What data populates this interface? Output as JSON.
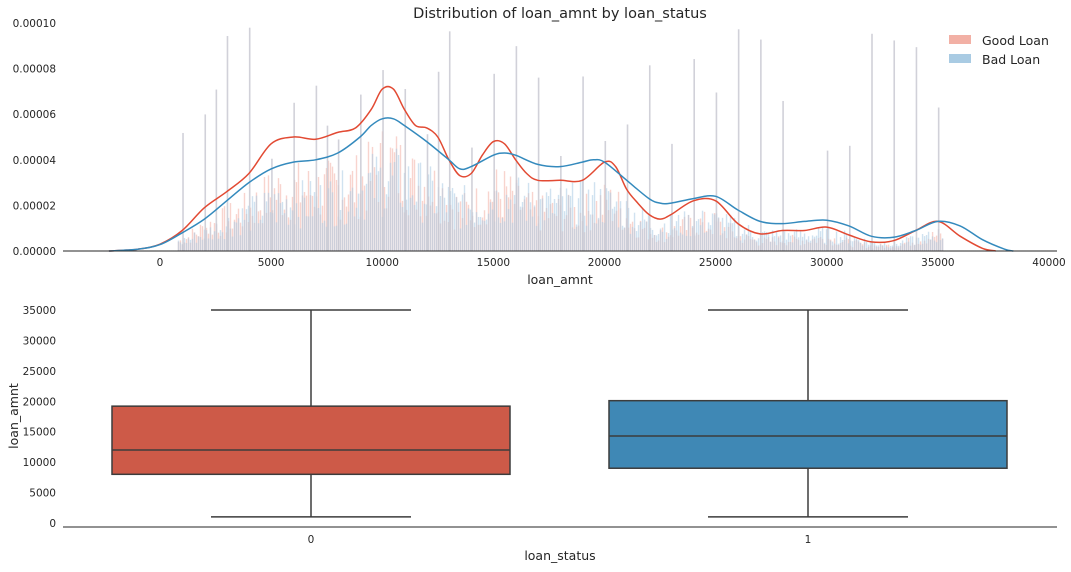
{
  "chart_data": [
    {
      "type": "area",
      "title": "Distribution of loan_amnt by loan_status",
      "xlabel": "loan_amnt",
      "ylabel": "",
      "xlim": [
        -4000,
        40000
      ],
      "ylim": [
        0,
        0.0001
      ],
      "xticks": [
        0,
        5000,
        10000,
        15000,
        20000,
        25000,
        30000,
        35000,
        40000
      ],
      "xtick_labels": [
        "0",
        "5000",
        "10000",
        "15000",
        "20000",
        "25000",
        "30000",
        "35000",
        "40000"
      ],
      "yticks": [
        0,
        2e-05,
        4e-05,
        6e-05,
        8e-05,
        0.0001
      ],
      "ytick_labels": [
        "0.00000",
        "0.00002",
        "0.00004",
        "0.00006",
        "0.00008",
        "0.00010"
      ],
      "grid": false,
      "legend_position": "top-right",
      "series": [
        {
          "name": "Good Loan",
          "color": "#e24a33",
          "hist_color": "#f2b0a5",
          "kde_x": [
            -2300,
            -1000,
            0,
            1000,
            2000,
            3000,
            4000,
            5000,
            6000,
            7000,
            8000,
            8800,
            9500,
            10000,
            10500,
            11000,
            11500,
            12000,
            12500,
            13000,
            13500,
            14000,
            14500,
            15000,
            15500,
            16000,
            16500,
            17000,
            18000,
            19000,
            20000,
            20500,
            21000,
            21500,
            22000,
            22500,
            23000,
            24000,
            25000,
            26000,
            27000,
            28000,
            29000,
            30000,
            31000,
            32000,
            33000,
            34000,
            35000,
            36000,
            37000,
            37600
          ],
          "kde_y": [
            0,
            8e-07,
            3e-06,
            9e-06,
            1.9e-05,
            2.6e-05,
            3.4e-05,
            4.7e-05,
            5e-05,
            4.9e-05,
            5.2e-05,
            5.4e-05,
            6.2e-05,
            7.1e-05,
            7.1e-05,
            6.2e-05,
            5.5e-05,
            5.4e-05,
            5e-05,
            4e-05,
            3.3e-05,
            3.4e-05,
            4.2e-05,
            4.8e-05,
            4.7e-05,
            4e-05,
            3.4e-05,
            3.1e-05,
            3.1e-05,
            3.1e-05,
            3.9e-05,
            3.7e-05,
            2.7e-05,
            2.1e-05,
            1.6e-05,
            1.4e-05,
            1.6e-05,
            2.2e-05,
            2.2e-05,
            1.2e-05,
            7.5e-06,
            9e-06,
            9e-06,
            1.05e-05,
            7e-06,
            4e-06,
            4.5e-06,
            9e-06,
            1.3e-05,
            6.5e-06,
            1.2e-06,
            0
          ]
        },
        {
          "name": "Bad Loan",
          "color": "#348abd",
          "hist_color": "#a9cbe3",
          "kde_x": [
            -2300,
            -1000,
            0,
            1000,
            2000,
            3000,
            4000,
            5000,
            6000,
            7000,
            8000,
            9000,
            9500,
            10000,
            10500,
            11000,
            12000,
            13000,
            13500,
            14000,
            15000,
            15500,
            16000,
            17000,
            18000,
            19000,
            19500,
            20000,
            21000,
            22000,
            22500,
            23000,
            24000,
            25000,
            26000,
            27000,
            28000,
            29000,
            30000,
            31000,
            32000,
            33000,
            34000,
            35000,
            36000,
            37000,
            38000,
            38400
          ],
          "kde_y": [
            0,
            8e-07,
            2.8e-06,
            8e-06,
            1.4e-05,
            2.2e-05,
            3e-05,
            3.6e-05,
            3.9e-05,
            4e-05,
            4.3e-05,
            5e-05,
            5.5e-05,
            5.8e-05,
            5.8e-05,
            5.5e-05,
            4.8e-05,
            4e-05,
            3.6e-05,
            3.7e-05,
            4.2e-05,
            4.3e-05,
            4.2e-05,
            3.8e-05,
            3.7e-05,
            3.9e-05,
            4e-05,
            3.9e-05,
            3.1e-05,
            2.3e-05,
            2.1e-05,
            2.1e-05,
            2.3e-05,
            2.4e-05,
            1.8e-05,
            1.3e-05,
            1.2e-05,
            1.3e-05,
            1.35e-05,
            1.1e-05,
            6.5e-06,
            6e-06,
            9e-06,
            1.3e-05,
            1.1e-05,
            5e-06,
            8e-07,
            0
          ]
        }
      ]
    },
    {
      "type": "box",
      "title": "",
      "xlabel": "loan_status",
      "ylabel": "loan_amnt",
      "ylim": [
        0,
        35000
      ],
      "categories": [
        "0",
        "1"
      ],
      "yticks": [
        0,
        5000,
        10000,
        15000,
        20000,
        25000,
        30000,
        35000
      ],
      "ytick_labels": [
        "0",
        "5000",
        "10000",
        "15000",
        "20000",
        "25000",
        "30000",
        "35000"
      ],
      "grid": false,
      "boxes": [
        {
          "category": "0",
          "whisker_low": 1000,
          "q1": 8000,
          "median": 12000,
          "q3": 19200,
          "whisker_high": 35000,
          "color": "#cd5a48"
        },
        {
          "category": "1",
          "whisker_low": 1000,
          "q1": 9000,
          "median": 14300,
          "q3": 20100,
          "whisker_high": 35000,
          "color": "#3f88b5"
        }
      ]
    }
  ]
}
